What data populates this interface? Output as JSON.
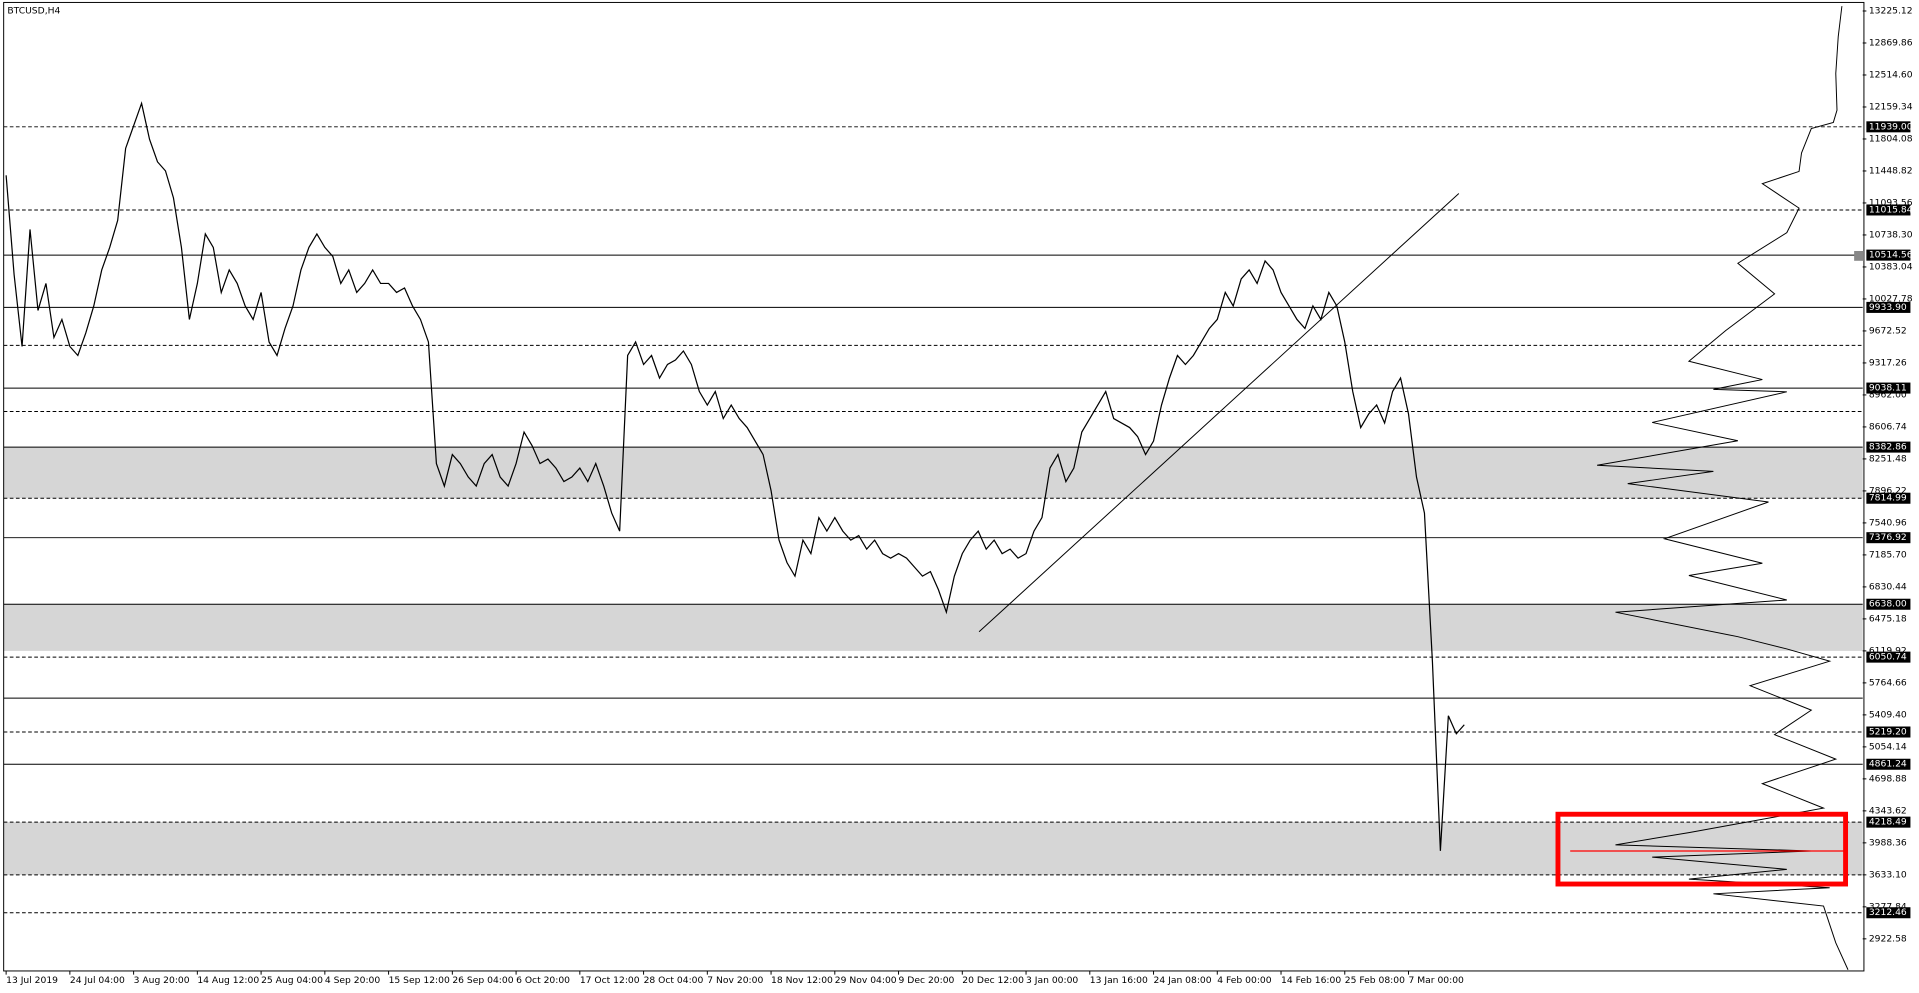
{
  "chart_data": {
    "type": "line",
    "title": "BTCUSD,H4",
    "color": "#000000",
    "values": [
      11400,
      10300,
      9500,
      10800,
      9900,
      10200,
      9600,
      9800,
      9500,
      9400,
      9650,
      9950,
      10350,
      10600,
      10900,
      11700,
      11950,
      12200,
      11800,
      11550,
      11450,
      11150,
      10600,
      9800,
      10200,
      10750,
      10600,
      10100,
      10350,
      10200,
      9950,
      9800,
      10100,
      9550,
      9400,
      9700,
      9950,
      10350,
      10600,
      10750,
      10600,
      10500,
      10200,
      10350,
      10100,
      10200,
      10350,
      10200,
      10200,
      10100,
      10150,
      9950,
      9800,
      9550,
      8200,
      7950,
      8300,
      8200,
      8050,
      7950,
      8200,
      8300,
      8050,
      7950,
      8200,
      8550,
      8400,
      8200,
      8250,
      8150,
      8000,
      8050,
      8150,
      8000,
      8200,
      7950,
      7650,
      7450,
      9400,
      9550,
      9300,
      9400,
      9150,
      9300,
      9350,
      9450,
      9300,
      9000,
      8850,
      9000,
      8700,
      8850,
      8700,
      8600,
      8450,
      8300,
      7900,
      7350,
      7100,
      6950,
      7350,
      7200,
      7600,
      7450,
      7600,
      7450,
      7350,
      7400,
      7250,
      7350,
      7200,
      7150,
      7200,
      7150,
      7050,
      6950,
      7000,
      6800,
      6550,
      6950,
      7200,
      7350,
      7450,
      7250,
      7350,
      7200,
      7250,
      7150,
      7200,
      7450,
      7600,
      8150,
      8300,
      8000,
      8150,
      8550,
      8700,
      8850,
      9000,
      8700,
      8650,
      8600,
      8500,
      8300,
      8450,
      8850,
      9150,
      9400,
      9300,
      9400,
      9550,
      9700,
      9800,
      10100,
      9950,
      10250,
      10350,
      10200,
      10450,
      10350,
      10100,
      9950,
      9800,
      9700,
      9950,
      9800,
      10100,
      9950,
      9550,
      9000,
      8600,
      8750,
      8850,
      8650,
      9000,
      9150,
      8750,
      8050,
      7650,
      6000,
      3900,
      5400,
      5200,
      5300
    ],
    "xlim": [
      0,
      233
    ],
    "xticks": [
      {
        "value": 0,
        "label": "13 Jul 2019"
      },
      {
        "value": 8,
        "label": "24 Jul 04:00"
      },
      {
        "value": 16,
        "label": "3 Aug 20:00"
      },
      {
        "value": 24,
        "label": "14 Aug 12:00"
      },
      {
        "value": 32,
        "label": "25 Aug 04:00"
      },
      {
        "value": 40,
        "label": "4 Sep 20:00"
      },
      {
        "value": 48,
        "label": "15 Sep 12:00"
      },
      {
        "value": 56,
        "label": "26 Sep 04:00"
      },
      {
        "value": 64,
        "label": "6 Oct 20:00"
      },
      {
        "value": 72,
        "label": "17 Oct 12:00"
      },
      {
        "value": 80,
        "label": "28 Oct 04:00"
      },
      {
        "value": 88,
        "label": "7 Nov 20:00"
      },
      {
        "value": 96,
        "label": "18 Nov 12:00"
      },
      {
        "value": 104,
        "label": "29 Nov 04:00"
      },
      {
        "value": 112,
        "label": "9 Dec 20:00"
      },
      {
        "value": 120,
        "label": "20 Dec 12:00"
      },
      {
        "value": 128,
        "label": "3 Jan 00:00"
      },
      {
        "value": 136,
        "label": "13 Jan 16:00"
      },
      {
        "value": 144,
        "label": "24 Jan 08:00"
      },
      {
        "value": 152,
        "label": "4 Feb 00:00"
      },
      {
        "value": 160,
        "label": "14 Feb 16:00"
      },
      {
        "value": 168,
        "label": "25 Feb 08:00"
      },
      {
        "value": 176,
        "label": "7 Mar 00:00"
      }
    ],
    "ylim": [
      2566,
      13320
    ],
    "yticks": [
      {
        "value": 13225.12,
        "label": "13225.12"
      },
      {
        "value": 12869.86,
        "label": "12869.86"
      },
      {
        "value": 12514.6,
        "label": "12514.60"
      },
      {
        "value": 12159.34,
        "label": "12159.34"
      },
      {
        "value": 11804.08,
        "label": "11804.08"
      },
      {
        "value": 11448.82,
        "label": "11448.82"
      },
      {
        "value": 11093.56,
        "label": "11093.56"
      },
      {
        "value": 10738.3,
        "label": "10738.30"
      },
      {
        "value": 10383.04,
        "label": "10383.04"
      },
      {
        "value": 10027.78,
        "label": "10027.78"
      },
      {
        "value": 9672.52,
        "label": "9672.52"
      },
      {
        "value": 9317.26,
        "label": "9317.26"
      },
      {
        "value": 8962.0,
        "label": "8962.00"
      },
      {
        "value": 8606.74,
        "label": "8606.74"
      },
      {
        "value": 8251.48,
        "label": "8251.48"
      },
      {
        "value": 7896.22,
        "label": "7896.22"
      },
      {
        "value": 7540.96,
        "label": "7540.96"
      },
      {
        "value": 7185.7,
        "label": "7185.70"
      },
      {
        "value": 6830.44,
        "label": "6830.44"
      },
      {
        "value": 6475.18,
        "label": "6475.18"
      },
      {
        "value": 6119.92,
        "label": "6119.92"
      },
      {
        "value": 5764.66,
        "label": "5764.66"
      },
      {
        "value": 5409.4,
        "label": "5409.40"
      },
      {
        "value": 5054.14,
        "label": "5054.14"
      },
      {
        "value": 4698.88,
        "label": "4698.88"
      },
      {
        "value": 4343.62,
        "label": "4343.62"
      },
      {
        "value": 3988.36,
        "label": "3988.36"
      },
      {
        "value": 3633.1,
        "label": "3633.10"
      },
      {
        "value": 3277.84,
        "label": "3277.84"
      },
      {
        "value": 2922.58,
        "label": "2922.58"
      }
    ],
    "levels": [
      {
        "value": 11939.0,
        "label": "11939.00",
        "style": "dashed"
      },
      {
        "value": 11015.84,
        "label": "11015.84",
        "style": "dashed"
      },
      {
        "value": 10514.56,
        "label": "10514.56",
        "style": "solid"
      },
      {
        "value": 9933.9,
        "label": "9933.90",
        "style": "solid"
      },
      {
        "value": 9038.11,
        "label": "9038.11",
        "style": "solid"
      },
      {
        "value": 8382.86,
        "label": "8382.86",
        "style": "solid"
      },
      {
        "value": 7814.99,
        "label": "7814.99",
        "style": "dashed"
      },
      {
        "value": 7376.92,
        "label": "7376.92",
        "style": "solid"
      },
      {
        "value": 6638.0,
        "label": "6638.00",
        "style": "solid"
      },
      {
        "value": 6050.74,
        "label": "6050.74",
        "style": "dashed"
      },
      {
        "value": 5219.2,
        "label": "5219.20",
        "style": "dashed"
      },
      {
        "value": 4861.24,
        "label": "4861.24",
        "style": "solid"
      },
      {
        "value": 4218.49,
        "label": "4218.49",
        "style": "dashed"
      },
      {
        "value": 3212.46,
        "label": "3212.46",
        "style": "dashed"
      }
    ],
    "unlabeled_levels": [
      {
        "value": 9512,
        "style": "dashed"
      },
      {
        "value": 8778,
        "style": "dashed"
      },
      {
        "value": 5595,
        "style": "solid"
      },
      {
        "value": 3633.1,
        "style": "dashed"
      }
    ],
    "zones": [
      [
        7814.99,
        8382.86
      ],
      [
        6119.92,
        6638.0
      ],
      [
        3633.1,
        4218.49
      ]
    ],
    "zone_color": "#d6d6d6"
  }
}
